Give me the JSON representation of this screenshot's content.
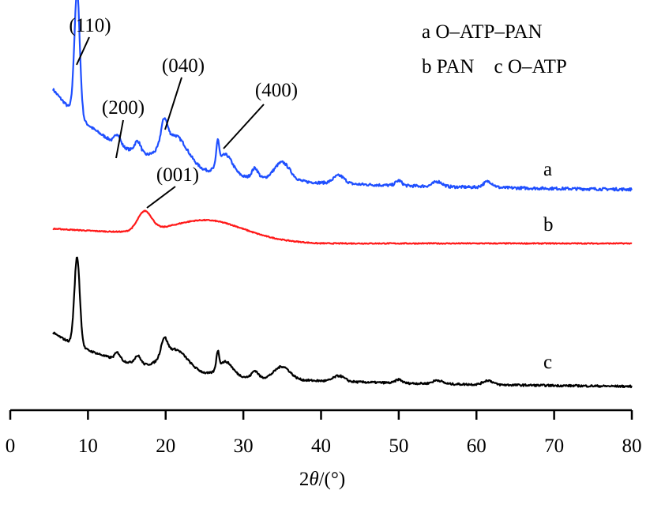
{
  "chart_data": {
    "type": "line",
    "title": "",
    "xlabel": "2θ/(°)",
    "xlabel_parts": {
      "var": "2",
      "italic": "θ",
      "unit": "/(°)"
    },
    "ylabel": "",
    "xlim": [
      0,
      80
    ],
    "x_ticks": [
      0,
      10,
      20,
      30,
      40,
      50,
      60,
      70,
      80
    ],
    "x_tick_labels": [
      "0",
      "10",
      "20",
      "30",
      "40",
      "50",
      "60",
      "70",
      "80"
    ],
    "grid": false,
    "legend": {
      "placement": "top-right",
      "lines": [
        "a O–ATP–PAN",
        "b PAN    c O–ATP"
      ]
    },
    "series": [
      {
        "name": "a",
        "label": "a",
        "color": "#1f4fff",
        "profile": "atp",
        "baseline": 0.43,
        "end": 0.0,
        "curve": 0.09,
        "points": [
          [
            5.5,
            0.43
          ],
          [
            8.6,
            1.0
          ],
          [
            14,
            0.36
          ],
          [
            20.5,
            0.47
          ],
          [
            26.8,
            0.58
          ],
          [
            27.6,
            0.32
          ],
          [
            35,
            0.15
          ],
          [
            42.5,
            0.07
          ],
          [
            61.5,
            0.04
          ],
          [
            80,
            0.0
          ]
        ]
      },
      {
        "name": "b",
        "label": "b",
        "color": "#ff1a1a",
        "profile": "pan",
        "baseline": 0.12,
        "end": 0.0,
        "points": [
          [
            5.5,
            0.12
          ],
          [
            17.3,
            0.28
          ],
          [
            26,
            0.14
          ],
          [
            35,
            0.05
          ],
          [
            80,
            0.0
          ]
        ]
      },
      {
        "name": "c",
        "label": "c",
        "color": "#000000",
        "profile": "atp",
        "baseline": 0.28,
        "end": 0.0,
        "curve": 0.12,
        "points": [
          [
            5.5,
            0.28
          ],
          [
            8.6,
            0.93
          ],
          [
            14,
            0.2
          ],
          [
            20.5,
            0.29
          ],
          [
            26.8,
            0.32
          ],
          [
            35,
            0.16
          ],
          [
            42.5,
            0.09
          ],
          [
            61.5,
            0.04
          ],
          [
            80,
            0.0
          ]
        ]
      }
    ],
    "annotations": [
      {
        "text": "(110)",
        "x": 8.6,
        "series": "a"
      },
      {
        "text": "(200)",
        "x": 14.0,
        "series": "a"
      },
      {
        "text": "(040)",
        "x": 20.0,
        "series": "a"
      },
      {
        "text": "(400)",
        "x": 27.5,
        "series": "a"
      },
      {
        "text": "(001)",
        "x": 17.3,
        "series": "b"
      }
    ]
  }
}
